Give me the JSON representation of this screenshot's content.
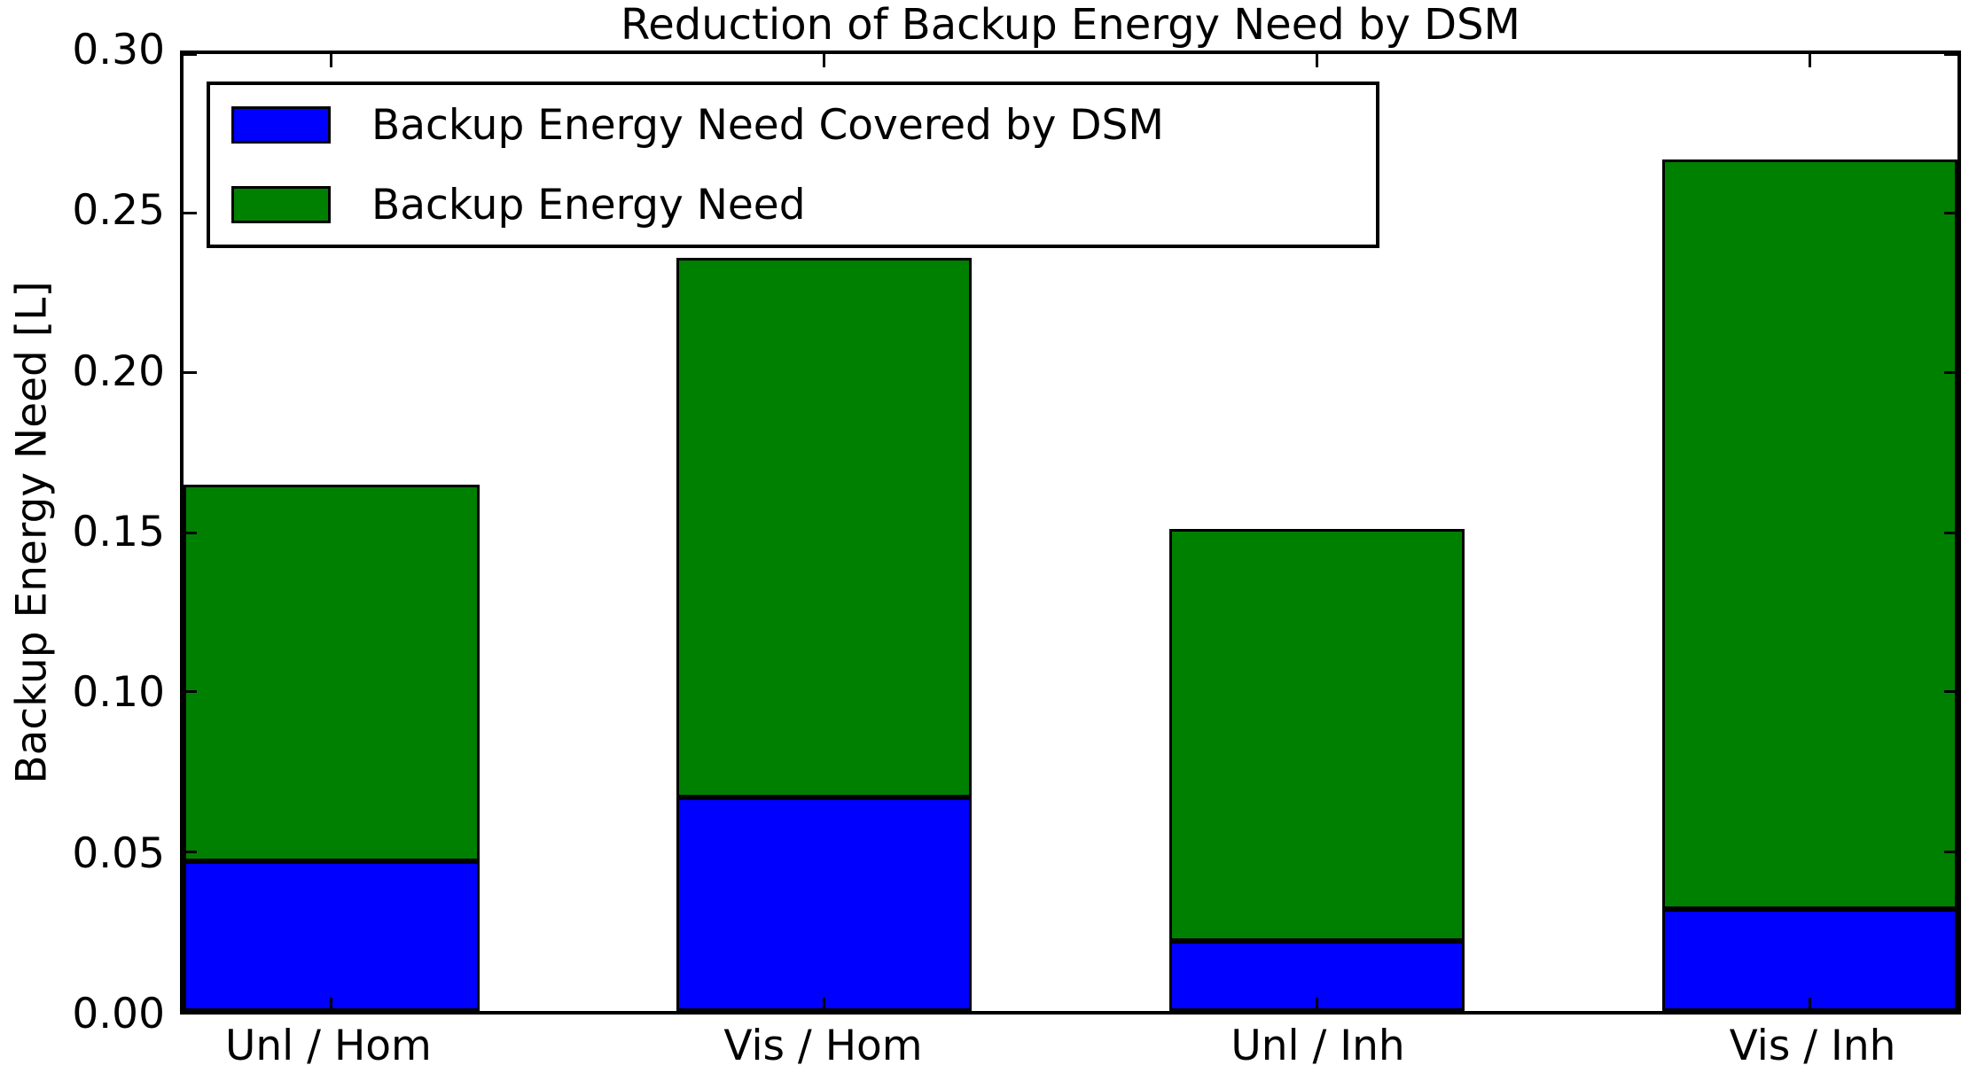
{
  "figure": {
    "background": "#ffffff",
    "frame_color": "#000000"
  },
  "chart_data": {
    "type": "bar",
    "stacked": true,
    "title": "Reduction of Backup Energy Need by DSM",
    "ylabel": "Backup Energy Need [L]",
    "xlabel": "",
    "categories": [
      "Unl / Hom",
      "Vis / Hom",
      "Unl / Inh",
      "Vis / Inh"
    ],
    "series": [
      {
        "name": "Backup Energy Need Covered by DSM",
        "color": "#0000ff",
        "values": [
          0.047,
          0.067,
          0.022,
          0.032
        ]
      },
      {
        "name": "Backup Energy Need",
        "color": "#008000",
        "values": [
          0.118,
          0.169,
          0.129,
          0.235
        ]
      }
    ],
    "stack_totals": [
      0.165,
      0.236,
      0.151,
      0.267
    ],
    "ylim": [
      0,
      0.3
    ],
    "yticks": [
      "0.00",
      "0.05",
      "0.10",
      "0.15",
      "0.20",
      "0.25",
      "0.30"
    ],
    "xlim_units": [
      0,
      3.6
    ],
    "bar_width_units": 0.6,
    "bar_offset_units": 1.0,
    "grid": false,
    "legend_position": "upper left",
    "tick_direction": "in",
    "edge_color": "#000000"
  },
  "legend": {
    "items": [
      {
        "label": "Backup Energy Need Covered by DSM",
        "color": "#0000ff"
      },
      {
        "label": "Backup Energy Need",
        "color": "#008000"
      }
    ]
  }
}
